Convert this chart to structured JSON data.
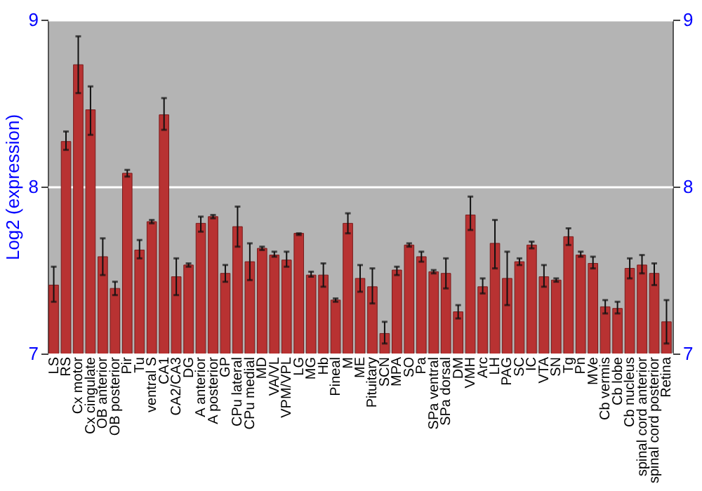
{
  "chart_data": {
    "type": "bar",
    "ylabel": "Log2 (expression)",
    "categories": [
      "LS",
      "RS",
      "Cx motor",
      "Cx cingulate",
      "OB anterior",
      "OB posterior",
      "Pir",
      "Tu",
      "ventral S",
      "CA1",
      "CA2/CA3",
      "DG",
      "A anterior",
      "A posterior",
      "GP",
      "CPu lateral",
      "CPu medial",
      "MD",
      "VA/VL",
      "VPM/VPL",
      "LG",
      "MG",
      "Hb",
      "Pineal",
      "M",
      "ME",
      "Pituitary",
      "SCN",
      "MPA",
      "SO",
      "Pa",
      "SPa ventral",
      "SPa dorsal",
      "DM",
      "VMH",
      "Arc",
      "LH",
      "PAG",
      "SC",
      "IC",
      "VTA",
      "SN",
      "Tg",
      "Pn",
      "MVe",
      "Cb vermis",
      "Cb lobe",
      "Cb nucleus",
      "spinal cord anterior",
      "spinal cord posterior",
      "Retina"
    ],
    "values": [
      7.41,
      8.27,
      8.73,
      8.46,
      7.58,
      7.39,
      8.08,
      7.62,
      7.79,
      8.43,
      7.46,
      7.53,
      7.78,
      7.82,
      7.48,
      7.76,
      7.55,
      7.63,
      7.59,
      7.56,
      7.72,
      7.47,
      7.47,
      7.32,
      7.78,
      7.45,
      7.4,
      7.12,
      7.5,
      7.65,
      7.58,
      7.49,
      7.48,
      7.25,
      7.83,
      7.4,
      7.66,
      7.45,
      7.55,
      7.65,
      7.46,
      7.44,
      7.7,
      7.59,
      7.54,
      7.28,
      7.27,
      7.51,
      7.53,
      7.48,
      7.19
    ],
    "errors": [
      [
        7.31,
        7.52
      ],
      [
        8.22,
        8.33
      ],
      [
        8.56,
        8.9
      ],
      [
        8.31,
        8.6
      ],
      [
        7.47,
        7.69
      ],
      [
        7.35,
        7.43
      ],
      [
        8.06,
        8.1
      ],
      [
        7.57,
        7.68
      ],
      [
        7.78,
        7.8
      ],
      [
        8.34,
        8.53
      ],
      [
        7.35,
        7.57
      ],
      [
        7.52,
        7.54
      ],
      [
        7.73,
        7.82
      ],
      [
        7.81,
        7.83
      ],
      [
        7.43,
        7.53
      ],
      [
        7.64,
        7.88
      ],
      [
        7.44,
        7.66
      ],
      [
        7.62,
        7.64
      ],
      [
        7.58,
        7.61
      ],
      [
        7.52,
        7.61
      ],
      [
        7.71,
        7.72
      ],
      [
        7.46,
        7.49
      ],
      [
        7.4,
        7.54
      ],
      [
        7.31,
        7.33
      ],
      [
        7.72,
        7.84
      ],
      [
        7.37,
        7.53
      ],
      [
        7.3,
        7.51
      ],
      [
        7.06,
        7.19
      ],
      [
        7.47,
        7.52
      ],
      [
        7.64,
        7.66
      ],
      [
        7.55,
        7.61
      ],
      [
        7.48,
        7.5
      ],
      [
        7.39,
        7.57
      ],
      [
        7.21,
        7.29
      ],
      [
        7.74,
        7.94
      ],
      [
        7.36,
        7.45
      ],
      [
        7.51,
        7.8
      ],
      [
        7.29,
        7.61
      ],
      [
        7.53,
        7.57
      ],
      [
        7.63,
        7.67
      ],
      [
        7.4,
        7.53
      ],
      [
        7.43,
        7.45
      ],
      [
        7.65,
        7.75
      ],
      [
        7.58,
        7.61
      ],
      [
        7.51,
        7.58
      ],
      [
        7.24,
        7.32
      ],
      [
        7.24,
        7.31
      ],
      [
        7.45,
        7.57
      ],
      [
        7.48,
        7.59
      ],
      [
        7.41,
        7.54
      ],
      [
        7.06,
        7.32
      ]
    ],
    "color": "#b83232",
    "ylim": [
      7,
      9
    ],
    "yticks": [
      7,
      8,
      9
    ],
    "y2lim": [
      7,
      9
    ],
    "y2ticks": [
      7,
      8,
      9
    ],
    "grid": "y"
  }
}
